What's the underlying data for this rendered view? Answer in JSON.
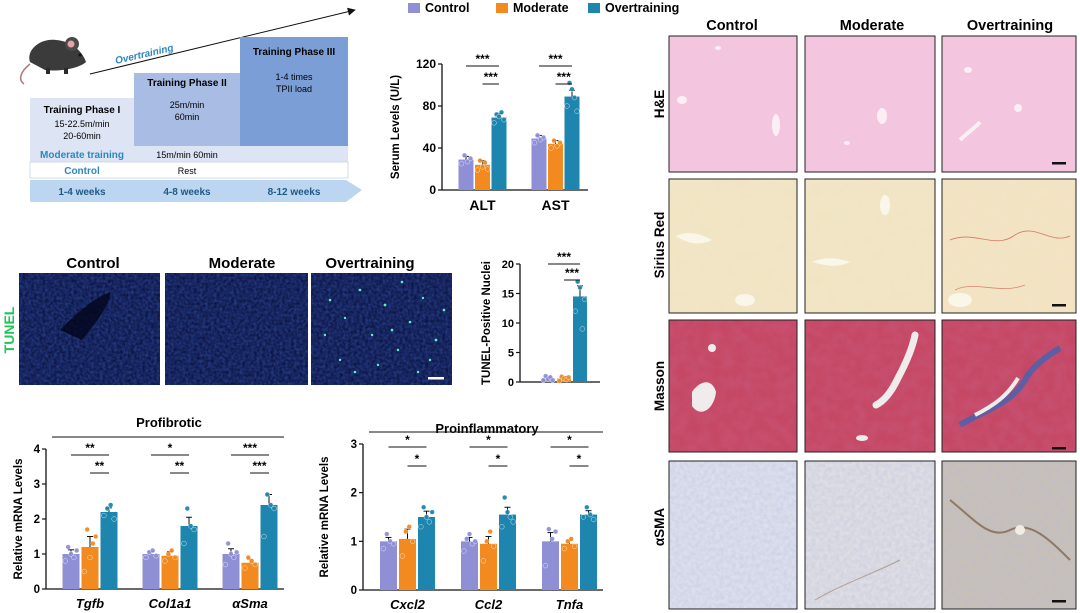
{
  "legend": {
    "items": [
      {
        "label": "Control",
        "color": "#8F8FD6"
      },
      {
        "label": "Moderate",
        "color": "#F28A1F"
      },
      {
        "label": "Overtraining",
        "color": "#1E86AE"
      }
    ]
  },
  "schematic": {
    "overtraining_label": "Overtraining",
    "phases": [
      {
        "title": "Training Phase I",
        "text": [
          "15-22.5m/min",
          "20-60min"
        ]
      },
      {
        "title": "Training Phase II",
        "text": [
          "25m/min",
          "60min"
        ]
      },
      {
        "title": "Training Phase III",
        "text": [
          "1-4 times",
          "TPII load"
        ]
      }
    ],
    "moderate_label": "Moderate training",
    "moderate_value": "15m/min 60min",
    "control_label": "Control",
    "control_value": "Rest",
    "weeks": [
      "1-4 weeks",
      "4-8 weeks",
      "8-12 weeks"
    ]
  },
  "tunel": {
    "side_label": "TUNEL",
    "columns": [
      "Control",
      "Moderate",
      "Overtraining"
    ]
  },
  "histology": {
    "columns": [
      "Control",
      "Moderate",
      "Overtraining"
    ],
    "rows": [
      "H&E",
      "Sirius Red",
      "Masson",
      "αSMA"
    ]
  },
  "colors": {
    "control": "#8F8FD6",
    "moderate": "#F28A1F",
    "overtraining": "#1E86AE"
  },
  "chart_data": [
    {
      "type": "bar",
      "ylabel": "Serum Levels (U/L)",
      "categories": [
        "ALT",
        "AST"
      ],
      "yticks": [
        0,
        40,
        80,
        120
      ],
      "ylim": [
        0,
        120
      ],
      "series": [
        {
          "name": "Control",
          "values": [
            29,
            49
          ]
        },
        {
          "name": "Moderate",
          "values": [
            24,
            44
          ]
        },
        {
          "name": "Overtraining",
          "values": [
            69,
            89
          ]
        }
      ],
      "errors": [
        [
          3,
          3
        ],
        [
          4,
          3
        ],
        [
          4,
          6
        ]
      ],
      "points": [
        [
          [
            25,
            33,
            27,
            30
          ],
          [
            45,
            52,
            48,
            50
          ]
        ],
        [
          [
            19,
            28,
            22,
            26,
            20
          ],
          [
            40,
            47,
            42,
            45
          ]
        ],
        [
          [
            64,
            72,
            70,
            74,
            67
          ],
          [
            80,
            102,
            96,
            88,
            75
          ]
        ]
      ],
      "significance": [
        {
          "category": 0,
          "from": 0,
          "to": 2,
          "label": "***"
        },
        {
          "category": 0,
          "from": 1,
          "to": 2,
          "label": "***"
        },
        {
          "category": 1,
          "from": 0,
          "to": 2,
          "label": "***"
        },
        {
          "category": 1,
          "from": 1,
          "to": 2,
          "label": "***"
        }
      ]
    },
    {
      "type": "bar",
      "ylabel": "TUNEL-Positive Nuclei",
      "categories": [
        ""
      ],
      "yticks": [
        0,
        5,
        10,
        15,
        20
      ],
      "ylim": [
        0,
        20
      ],
      "series": [
        {
          "name": "Control",
          "values": [
            0.6
          ]
        },
        {
          "name": "Moderate",
          "values": [
            0.6
          ]
        },
        {
          "name": "Overtraining",
          "values": [
            14.5
          ]
        }
      ],
      "errors": [
        [
          0.3
        ],
        [
          0.3
        ],
        [
          1.8
        ]
      ],
      "points": [
        [
          [
            0.3,
            1.0,
            0.5,
            0.8,
            0.3
          ]
        ],
        [
          [
            0.2,
            0.9,
            0.6,
            0.4,
            0.8
          ]
        ],
        [
          [
            12,
            17,
            16,
            9,
            14
          ]
        ]
      ],
      "significance": [
        {
          "category": 0,
          "from": 0,
          "to": 2,
          "label": "***"
        },
        {
          "category": 0,
          "from": 1,
          "to": 2,
          "label": "***"
        }
      ]
    },
    {
      "type": "bar",
      "title": "Profibrotic",
      "ylabel": "Relative mRNA Levels",
      "categories": [
        "Tgfb",
        "Col1a1",
        "αSma"
      ],
      "yticks": [
        0,
        1,
        2,
        3,
        4
      ],
      "ylim": [
        0,
        4
      ],
      "series": [
        {
          "name": "Control",
          "values": [
            1.0,
            1.0,
            1.0
          ]
        },
        {
          "name": "Moderate",
          "values": [
            1.2,
            0.95,
            0.75
          ]
        },
        {
          "name": "Overtraining",
          "values": [
            2.2,
            1.8,
            2.4
          ]
        }
      ],
      "errors": [
        [
          0.12,
          0.07,
          0.15
        ],
        [
          0.3,
          0.12,
          0.1
        ],
        [
          0.12,
          0.25,
          0.3
        ]
      ],
      "points": [
        [
          [
            0.8,
            1.2,
            1.0,
            0.9,
            1.1
          ],
          [
            0.9,
            1.05,
            1.1,
            0.95
          ],
          [
            0.7,
            1.3,
            1.0,
            0.9,
            1.05
          ]
        ],
        [
          [
            0.5,
            1.7,
            0.9,
            1.3,
            1.5
          ],
          [
            0.8,
            1.0,
            1.1,
            0.9
          ],
          [
            0.6,
            0.9,
            0.8,
            0.7
          ]
        ],
        [
          [
            2.1,
            2.3,
            2.4,
            2.0
          ],
          [
            1.3,
            2.3,
            1.8,
            1.7
          ],
          [
            1.5,
            2.7,
            2.4,
            2.3
          ]
        ]
      ],
      "significance": [
        {
          "category": 0,
          "from": 0,
          "to": 2,
          "label": "**"
        },
        {
          "category": 0,
          "from": 1,
          "to": 2,
          "label": "**"
        },
        {
          "category": 1,
          "from": 0,
          "to": 2,
          "label": "*"
        },
        {
          "category": 1,
          "from": 1,
          "to": 2,
          "label": "**"
        },
        {
          "category": 2,
          "from": 0,
          "to": 2,
          "label": "***"
        },
        {
          "category": 2,
          "from": 1,
          "to": 2,
          "label": "***"
        }
      ]
    },
    {
      "type": "bar",
      "title": "Proinflammatory",
      "ylabel": "Relative mRNA Levels",
      "categories": [
        "Cxcl2",
        "Ccl2",
        "Tnfa"
      ],
      "yticks": [
        0,
        1,
        2,
        3
      ],
      "ylim": [
        0,
        3
      ],
      "series": [
        {
          "name": "Control",
          "values": [
            1.0,
            1.0,
            1.0
          ]
        },
        {
          "name": "Moderate",
          "values": [
            1.05,
            0.95,
            0.95
          ]
        },
        {
          "name": "Overtraining",
          "values": [
            1.5,
            1.55,
            1.55
          ]
        }
      ],
      "errors": [
        [
          0.08,
          0.08,
          0.18
        ],
        [
          0.2,
          0.15,
          0.08
        ],
        [
          0.12,
          0.15,
          0.08
        ]
      ],
      "points": [
        [
          [
            0.85,
            1.15,
            1.0,
            0.95
          ],
          [
            0.8,
            1.05,
            1.15,
            0.95,
            1.0
          ],
          [
            0.5,
            1.25,
            1.05,
            1.2
          ]
        ],
        [
          [
            0.7,
            1.2,
            1.3,
            1.0
          ],
          [
            0.6,
            1.0,
            1.2,
            0.9
          ],
          [
            0.85,
            1.0,
            1.05,
            0.9
          ]
        ],
        [
          [
            1.3,
            1.7,
            1.5,
            1.4,
            1.6
          ],
          [
            1.3,
            1.9,
            1.6,
            1.5,
            1.4
          ],
          [
            1.5,
            1.7,
            1.55,
            1.45
          ]
        ]
      ],
      "significance": [
        {
          "category": 0,
          "from": 0,
          "to": 2,
          "label": "*"
        },
        {
          "category": 0,
          "from": 1,
          "to": 2,
          "label": "*"
        },
        {
          "category": 1,
          "from": 0,
          "to": 2,
          "label": "*"
        },
        {
          "category": 1,
          "from": 1,
          "to": 2,
          "label": "*"
        },
        {
          "category": 2,
          "from": 0,
          "to": 2,
          "label": "*"
        },
        {
          "category": 2,
          "from": 1,
          "to": 2,
          "label": "*"
        }
      ]
    }
  ]
}
